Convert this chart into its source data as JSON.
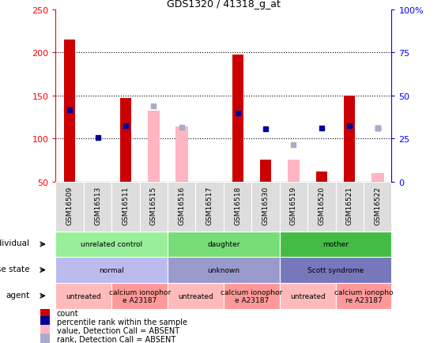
{
  "title": "GDS1320 / 41318_g_at",
  "samples": [
    "GSM16509",
    "GSM16513",
    "GSM16511",
    "GSM16515",
    "GSM16516",
    "GSM16517",
    "GSM16518",
    "GSM16530",
    "GSM16519",
    "GSM16520",
    "GSM16521",
    "GSM16522"
  ],
  "red_bars": [
    215,
    null,
    147,
    null,
    null,
    null,
    198,
    75,
    null,
    62,
    150,
    null
  ],
  "pink_bars": [
    null,
    null,
    null,
    132,
    114,
    null,
    null,
    null,
    75,
    null,
    null,
    60
  ],
  "blue_squares": [
    133,
    101,
    115,
    null,
    null,
    null,
    130,
    111,
    null,
    112,
    115,
    112
  ],
  "lavender_squares": [
    null,
    null,
    null,
    138,
    113,
    null,
    null,
    null,
    93,
    null,
    null,
    112
  ],
  "ylim_left": [
    50,
    250
  ],
  "ylim_right": [
    0,
    100
  ],
  "yticks_left": [
    50,
    100,
    150,
    200,
    250
  ],
  "yticks_right": [
    0,
    25,
    50,
    75,
    100
  ],
  "ytick_labels_left": [
    "50",
    "100",
    "150",
    "200",
    "250"
  ],
  "ytick_labels_right": [
    "0",
    "25",
    "50",
    "75",
    "100%"
  ],
  "grid_lines": [
    100,
    150,
    200
  ],
  "individual_groups": [
    {
      "label": "unrelated control",
      "span": [
        0,
        4
      ],
      "color": "#99EE99"
    },
    {
      "label": "daughter",
      "span": [
        4,
        8
      ],
      "color": "#77DD77"
    },
    {
      "label": "mother",
      "span": [
        8,
        12
      ],
      "color": "#44BB44"
    }
  ],
  "disease_groups": [
    {
      "label": "normal",
      "span": [
        0,
        4
      ],
      "color": "#BBBBEE"
    },
    {
      "label": "unknown",
      "span": [
        4,
        8
      ],
      "color": "#9999CC"
    },
    {
      "label": "Scott syndrome",
      "span": [
        8,
        12
      ],
      "color": "#7777BB"
    }
  ],
  "agent_groups": [
    {
      "label": "untreated",
      "span": [
        0,
        2
      ],
      "color": "#FFBBBB"
    },
    {
      "label": "calcium ionophor\ne A23187",
      "span": [
        2,
        4
      ],
      "color": "#FF9999"
    },
    {
      "label": "untreated",
      "span": [
        4,
        6
      ],
      "color": "#FFBBBB"
    },
    {
      "label": "calcium ionophor\ne A23187",
      "span": [
        6,
        8
      ],
      "color": "#FF9999"
    },
    {
      "label": "untreated",
      "span": [
        8,
        10
      ],
      "color": "#FFBBBB"
    },
    {
      "label": "calcium ionopho\nre A23187",
      "span": [
        10,
        12
      ],
      "color": "#FF9999"
    }
  ],
  "bar_width": 0.4,
  "red_color": "#CC0000",
  "pink_color": "#FFB6C1",
  "blue_color": "#000099",
  "lavender_color": "#AAAACC",
  "legend_items": [
    {
      "label": "count",
      "color": "#CC0000"
    },
    {
      "label": "percentile rank within the sample",
      "color": "#000099"
    },
    {
      "label": "value, Detection Call = ABSENT",
      "color": "#FFB6C1"
    },
    {
      "label": "rank, Detection Call = ABSENT",
      "color": "#AAAACC"
    }
  ]
}
